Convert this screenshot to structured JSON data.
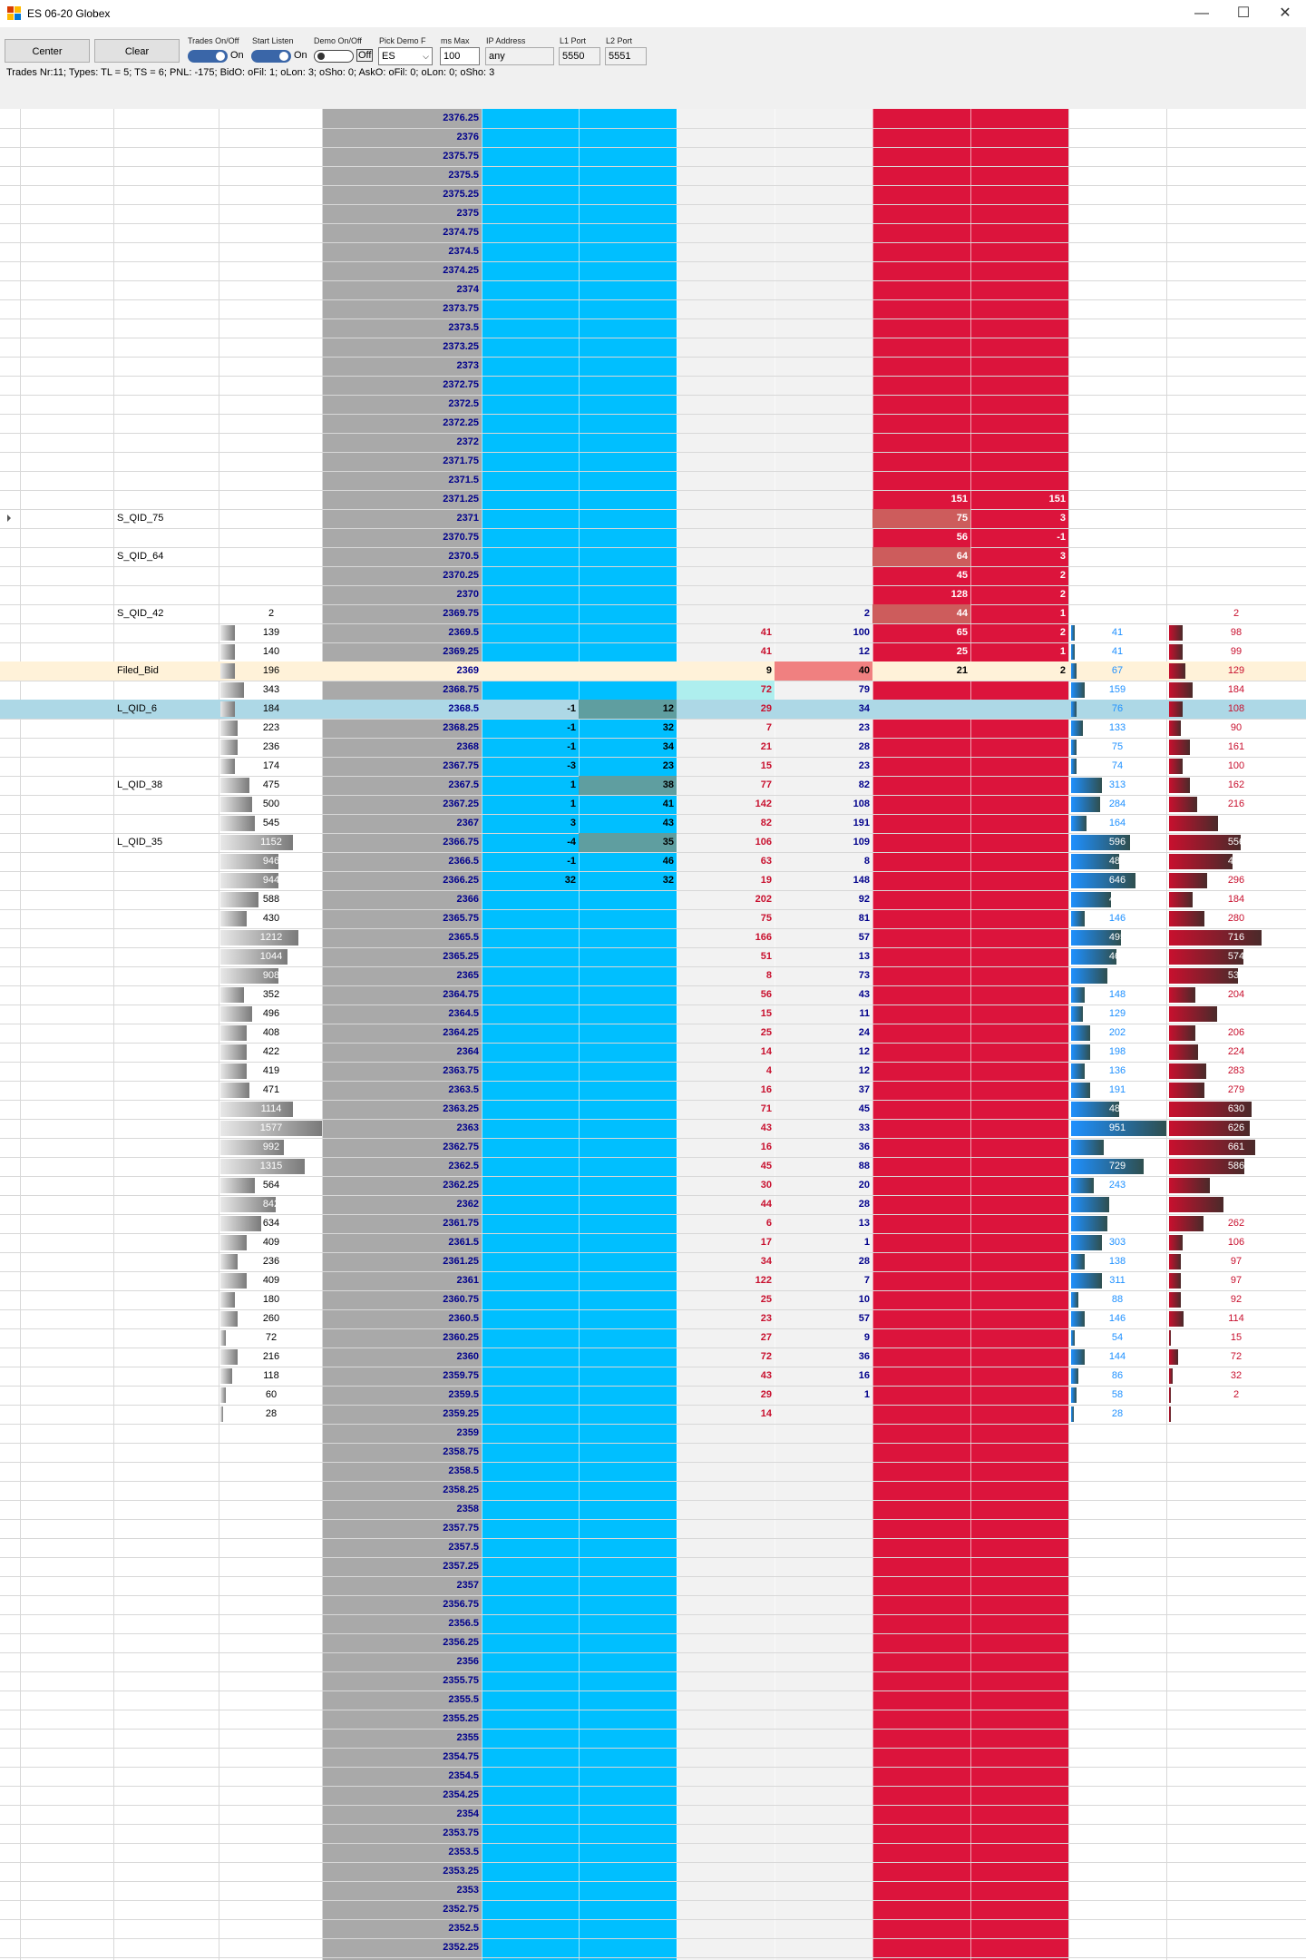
{
  "window": {
    "title": "ES 06-20 Globex",
    "minimize": "—",
    "maximize": "☐",
    "close": "✕"
  },
  "toolbar": {
    "center_label": "Center",
    "clear_label": "Clear",
    "trades_label": "Trades On/Off",
    "trades_state": "On",
    "listen_label": "Start Listen",
    "listen_state": "On",
    "demo_label": "Demo On/Off",
    "demo_state": "Off",
    "pick_demo_label": "Pick Demo F",
    "pick_demo_value": "ES",
    "ms_max_label": "ms Max",
    "ms_max_value": "100",
    "ip_label": "IP Address",
    "ip_value": "any",
    "l1_label": "L1 Port",
    "l1_value": "5550",
    "l2_label": "L2 Port",
    "l2_value": "5551"
  },
  "status_text": "Trades Nr:11; Types: TL = 5; TS = 6; PNL: -175; BidO: oFil: 1; oLon: 3; oSho: 0; AskO: oFil: 0; oLon: 0; oSho: 3",
  "colors": {
    "price_bg": "#a9a9a9",
    "bid_bg": "#00bfff",
    "ask_bg": "#dc143c",
    "filled_row": "#fff2d9",
    "selected_row": "#add8e6"
  },
  "upper_prices": [
    "2376.25",
    "2376",
    "2375.75",
    "2375.5",
    "2375.25",
    "2375",
    "2374.75",
    "2374.5",
    "2374.25",
    "2374",
    "2373.75",
    "2373.5",
    "2373.25",
    "2373",
    "2372.75",
    "2372.5",
    "2372.25",
    "2372",
    "2371.75",
    "2371.5"
  ],
  "lower_prices": [
    "2359",
    "2358.75",
    "2358.5",
    "2358.25",
    "2358",
    "2357.75",
    "2357.5",
    "2357.25",
    "2357",
    "2356.75",
    "2356.5",
    "2356.25",
    "2356",
    "2355.75",
    "2355.5",
    "2355.25",
    "2355",
    "2354.75",
    "2354.5",
    "2354.25",
    "2354",
    "2353.75",
    "2353.5",
    "2353.25",
    "2353",
    "2352.75",
    "2352.5",
    "2352.25"
  ],
  "rows": [
    {
      "price": "2371.25",
      "ask": "151",
      "ask2": "151"
    },
    {
      "label": "S_QID_75",
      "price": "2371",
      "ask": "75",
      "ask2": "3",
      "askHi": 1
    },
    {
      "price": "2370.75",
      "ask": "56",
      "ask2": "-1"
    },
    {
      "label": "S_QID_64",
      "price": "2370.5",
      "ask": "64",
      "ask2": "3",
      "askHi": 1
    },
    {
      "price": "2370.25",
      "ask": "45",
      "ask2": "2"
    },
    {
      "price": "2370",
      "ask": "128",
      "ask2": "2"
    },
    {
      "label": "S_QID_42",
      "vol": "2",
      "price": "2369.75",
      "sell": "",
      "buy": "2",
      "ask": "44",
      "ask2": "1",
      "askHi": 1,
      "bv": "",
      "sv": "2"
    },
    {
      "vol": "139",
      "volw": 5,
      "price": "2369.5",
      "sell": "41",
      "buy": "100",
      "ask": "65",
      "ask2": "2",
      "bv": "41",
      "bvw": 2,
      "sv": "98",
      "svw": 10
    },
    {
      "vol": "140",
      "volw": 5,
      "price": "2369.25",
      "sell": "41",
      "buy": "12",
      "ask": "25",
      "ask2": "1",
      "bv": "41",
      "bvw": 2,
      "sv": "99",
      "svw": 10
    },
    {
      "label": "Filed_Bid",
      "vol": "196",
      "volw": 5,
      "price": "2369",
      "sell": "9",
      "buy": "40",
      "ask": "21",
      "ask2": "2",
      "bv": "67",
      "bvw": 3,
      "sv": "129",
      "svw": 12,
      "filled": 1
    },
    {
      "vol": "343",
      "volw": 8,
      "price": "2368.75",
      "sell": "72",
      "buy": "79",
      "bv": "159",
      "bvw": 7,
      "sv": "184",
      "svw": 18
    },
    {
      "label": "L_QID_6",
      "vol": "184",
      "volw": 5,
      "price": "2368.5",
      "bid": "-1",
      "bid2": "12",
      "sell": "29",
      "buy": "34",
      "bv": "76",
      "bvw": 3,
      "sv": "108",
      "svw": 10,
      "selected": 1
    },
    {
      "vol": "223",
      "volw": 6,
      "price": "2368.25",
      "bid": "-1",
      "bid2": "32",
      "sell": "7",
      "buy": "23",
      "bv": "133",
      "bvw": 6,
      "sv": "90",
      "svw": 9
    },
    {
      "vol": "236",
      "volw": 6,
      "price": "2368",
      "bid": "-1",
      "bid2": "34",
      "sell": "21",
      "buy": "28",
      "bv": "75",
      "bvw": 3,
      "sv": "161",
      "svw": 16
    },
    {
      "vol": "174",
      "volw": 5,
      "price": "2367.75",
      "bid": "-3",
      "bid2": "23",
      "sell": "15",
      "buy": "23",
      "bv": "74",
      "bvw": 3,
      "sv": "100",
      "svw": 10
    },
    {
      "label": "L_QID_38",
      "vol": "475",
      "volw": 10,
      "price": "2367.5",
      "bid": "1",
      "bid2": "38",
      "bidHi": 1,
      "sell": "77",
      "buy": "82",
      "bv": "313",
      "bvw": 16,
      "sv": "162",
      "svw": 16
    },
    {
      "vol": "500",
      "volw": 11,
      "price": "2367.25",
      "bid": "1",
      "bid2": "41",
      "sell": "142",
      "buy": "108",
      "bv": "284",
      "bvw": 15,
      "sv": "216",
      "svw": 21
    },
    {
      "vol": "545",
      "volw": 12,
      "price": "2367",
      "bid": "3",
      "bid2": "43",
      "sell": "82",
      "buy": "191",
      "bv": "164",
      "bvw": 8,
      "sv": "381",
      "svw": 37
    },
    {
      "label": "L_QID_35",
      "vol": "1152",
      "volw": 25,
      "price": "2366.75",
      "bid": "-4",
      "bid2": "35",
      "bidHi": 1,
      "sell": "106",
      "buy": "109",
      "bv": "596",
      "bvw": 31,
      "sv": "556",
      "svw": 54
    },
    {
      "vol": "946",
      "volw": 20,
      "price": "2366.5",
      "bid": "-1",
      "bid2": "46",
      "sell": "63",
      "buy": "8",
      "bv": "484",
      "bvw": 25,
      "sv": "492",
      "svw": 48
    },
    {
      "vol": "944",
      "volw": 20,
      "price": "2366.25",
      "bid": "32",
      "bid2": "32",
      "sell": "19",
      "buy": "148",
      "bv": "646",
      "bvw": 34,
      "sv": "296",
      "svw": 29
    },
    {
      "vol": "588",
      "volw": 13,
      "price": "2366",
      "sell": "202",
      "buy": "92",
      "bv": "403",
      "bvw": 21,
      "sv": "184",
      "svw": 18
    },
    {
      "vol": "430",
      "volw": 9,
      "price": "2365.75",
      "sell": "75",
      "buy": "81",
      "bv": "146",
      "bvw": 7,
      "sv": "280",
      "svw": 27
    },
    {
      "vol": "1212",
      "volw": 27,
      "price": "2365.5",
      "sell": "166",
      "buy": "57",
      "bv": "495",
      "bvw": 26,
      "sv": "716",
      "svw": 70
    },
    {
      "vol": "1044",
      "volw": 23,
      "price": "2365.25",
      "sell": "51",
      "buy": "13",
      "bv": "469",
      "bvw": 24,
      "sv": "574",
      "svw": 56
    },
    {
      "vol": "908",
      "volw": 20,
      "price": "2365",
      "sell": "8",
      "buy": "73",
      "bv": "378",
      "bvw": 19,
      "sv": "530",
      "svw": 52
    },
    {
      "vol": "352",
      "volw": 8,
      "price": "2364.75",
      "sell": "56",
      "buy": "43",
      "bv": "148",
      "bvw": 7,
      "sv": "204",
      "svw": 20
    },
    {
      "vol": "496",
      "volw": 11,
      "price": "2364.5",
      "sell": "15",
      "buy": "11",
      "bv": "129",
      "bvw": 6,
      "sv": "364",
      "svw": 36
    },
    {
      "vol": "408",
      "volw": 9,
      "price": "2364.25",
      "sell": "25",
      "buy": "24",
      "bv": "202",
      "bvw": 10,
      "sv": "206",
      "svw": 20
    },
    {
      "vol": "422",
      "volw": 9,
      "price": "2364",
      "sell": "14",
      "buy": "12",
      "bv": "198",
      "bvw": 10,
      "sv": "224",
      "svw": 22
    },
    {
      "vol": "419",
      "volw": 9,
      "price": "2363.75",
      "sell": "4",
      "buy": "12",
      "bv": "136",
      "bvw": 7,
      "sv": "283",
      "svw": 28
    },
    {
      "vol": "471",
      "volw": 10,
      "price": "2363.5",
      "sell": "16",
      "buy": "37",
      "bv": "191",
      "bvw": 10,
      "sv": "279",
      "svw": 27
    },
    {
      "vol": "1114",
      "volw": 25,
      "price": "2363.25",
      "sell": "71",
      "buy": "45",
      "bv": "484",
      "bvw": 25,
      "sv": "630",
      "svw": 62
    },
    {
      "vol": "1577",
      "volw": 35,
      "price": "2363",
      "sell": "43",
      "buy": "33",
      "bv": "951",
      "bvw": 50,
      "sv": "626",
      "svw": 61
    },
    {
      "vol": "992",
      "volw": 22,
      "price": "2362.75",
      "sell": "16",
      "buy": "36",
      "bv": "331",
      "bvw": 17,
      "sv": "661",
      "svw": 65
    },
    {
      "vol": "1315",
      "volw": 29,
      "price": "2362.5",
      "sell": "45",
      "buy": "88",
      "bv": "729",
      "bvw": 38,
      "sv": "586",
      "svw": 57
    },
    {
      "vol": "564",
      "volw": 12,
      "price": "2362.25",
      "sell": "30",
      "buy": "20",
      "bv": "243",
      "bvw": 12,
      "sv": "321",
      "svw": 31
    },
    {
      "vol": "842",
      "volw": 19,
      "price": "2362",
      "sell": "44",
      "buy": "28",
      "bv": "381",
      "bvw": 20,
      "sv": "421",
      "svw": 41
    },
    {
      "vol": "634",
      "volw": 14,
      "price": "2361.75",
      "sell": "6",
      "buy": "13",
      "bv": "372",
      "bvw": 19,
      "sv": "262",
      "svw": 26
    },
    {
      "vol": "409",
      "volw": 9,
      "price": "2361.5",
      "sell": "17",
      "buy": "1",
      "bv": "303",
      "bvw": 16,
      "sv": "106",
      "svw": 10
    },
    {
      "vol": "236",
      "volw": 6,
      "price": "2361.25",
      "sell": "34",
      "buy": "28",
      "bv": "138",
      "bvw": 7,
      "sv": "97",
      "svw": 9
    },
    {
      "vol": "409",
      "volw": 9,
      "price": "2361",
      "sell": "122",
      "buy": "7",
      "bv": "311",
      "bvw": 16,
      "sv": "97",
      "svw": 9
    },
    {
      "vol": "180",
      "volw": 5,
      "price": "2360.75",
      "sell": "25",
      "buy": "10",
      "bv": "88",
      "bvw": 4,
      "sv": "92",
      "svw": 9
    },
    {
      "vol": "260",
      "volw": 6,
      "price": "2360.5",
      "sell": "23",
      "buy": "57",
      "bv": "146",
      "bvw": 7,
      "sv": "114",
      "svw": 11
    },
    {
      "vol": "72",
      "volw": 2,
      "price": "2360.25",
      "sell": "27",
      "buy": "9",
      "bv": "54",
      "bvw": 2,
      "sv": "15",
      "svw": 1
    },
    {
      "vol": "216",
      "volw": 6,
      "price": "2360",
      "sell": "72",
      "buy": "36",
      "bv": "144",
      "bvw": 7,
      "sv": "72",
      "svw": 7
    },
    {
      "vol": "118",
      "volw": 4,
      "price": "2359.75",
      "sell": "43",
      "buy": "16",
      "bv": "86",
      "bvw": 4,
      "sv": "32",
      "svw": 3
    },
    {
      "vol": "60",
      "volw": 2,
      "price": "2359.5",
      "sell": "29",
      "buy": "1",
      "bv": "58",
      "bvw": 3,
      "sv": "2",
      "svw": 0
    },
    {
      "vol": "28",
      "volw": 1,
      "price": "2359.25",
      "sell": "14",
      "buy": "",
      "bv": "28",
      "bvw": 1,
      "sv": "",
      "svw": 0
    }
  ]
}
